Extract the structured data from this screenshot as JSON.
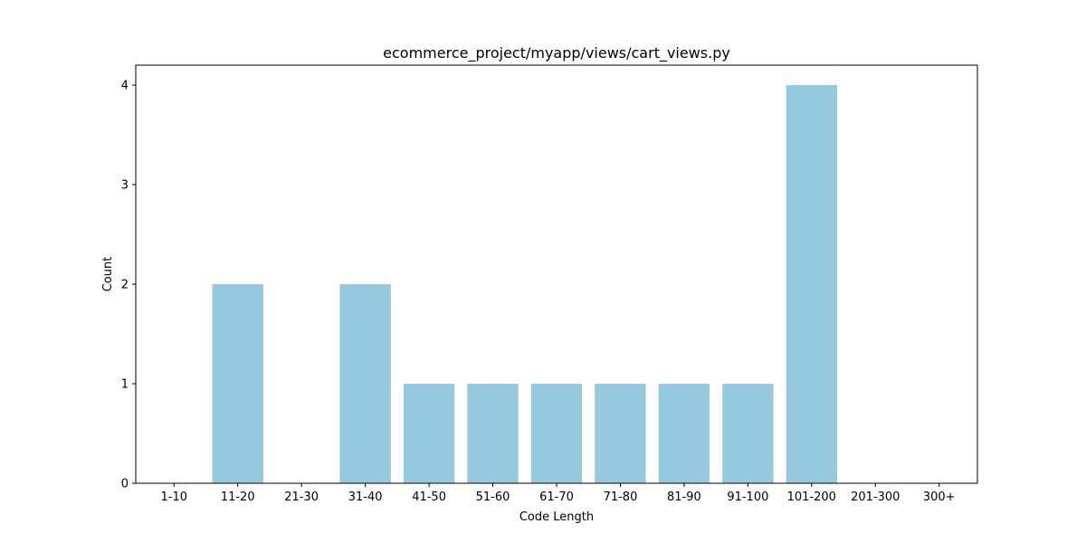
{
  "chart_data": {
    "type": "bar",
    "title": "ecommerce_project/myapp/views/cart_views.py",
    "xlabel": "Code Length",
    "ylabel": "Count",
    "categories": [
      "1-10",
      "11-20",
      "21-30",
      "31-40",
      "41-50",
      "51-60",
      "61-70",
      "71-80",
      "81-90",
      "91-100",
      "101-200",
      "201-300",
      "300+"
    ],
    "values": [
      0,
      2,
      0,
      2,
      1,
      1,
      1,
      1,
      1,
      1,
      4,
      0,
      0
    ],
    "ylim": [
      0,
      4.2
    ],
    "yticks": [
      0,
      1,
      2,
      3,
      4
    ],
    "grid": false,
    "bar_color": "#96c9dd"
  }
}
